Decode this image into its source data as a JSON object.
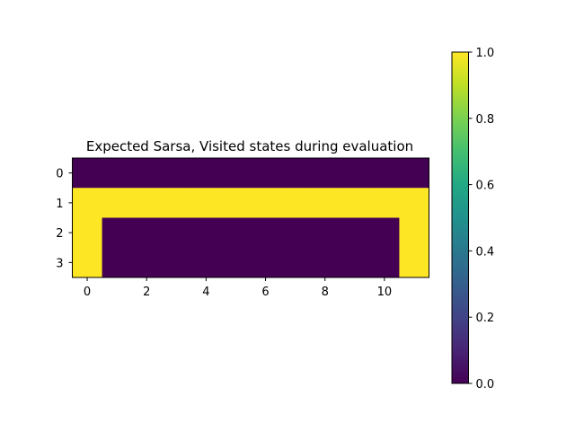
{
  "chart_data": {
    "type": "heatmap",
    "title": "Expected Sarsa, Visited states during evaluation",
    "xlabel": "",
    "ylabel": "",
    "rows": 4,
    "cols": 12,
    "x_ticks": [
      0,
      2,
      4,
      6,
      8,
      10
    ],
    "y_ticks": [
      0,
      1,
      2,
      3
    ],
    "values": [
      [
        0,
        0,
        0,
        0,
        0,
        0,
        0,
        0,
        0,
        0,
        0,
        0
      ],
      [
        1,
        1,
        1,
        1,
        1,
        1,
        1,
        1,
        1,
        1,
        1,
        1
      ],
      [
        1,
        0,
        0,
        0,
        0,
        0,
        0,
        0,
        0,
        0,
        0,
        1
      ],
      [
        1,
        0,
        0,
        0,
        0,
        0,
        0,
        0,
        0,
        0,
        0,
        1
      ]
    ],
    "colorbar": {
      "range": [
        0.0,
        1.0
      ],
      "ticks": [
        "0.0",
        "0.2",
        "0.4",
        "0.6",
        "0.8",
        "1.0"
      ],
      "colormap": "viridis"
    },
    "colors": {
      "low": "#440154",
      "high": "#fde725"
    },
    "grid": false
  }
}
